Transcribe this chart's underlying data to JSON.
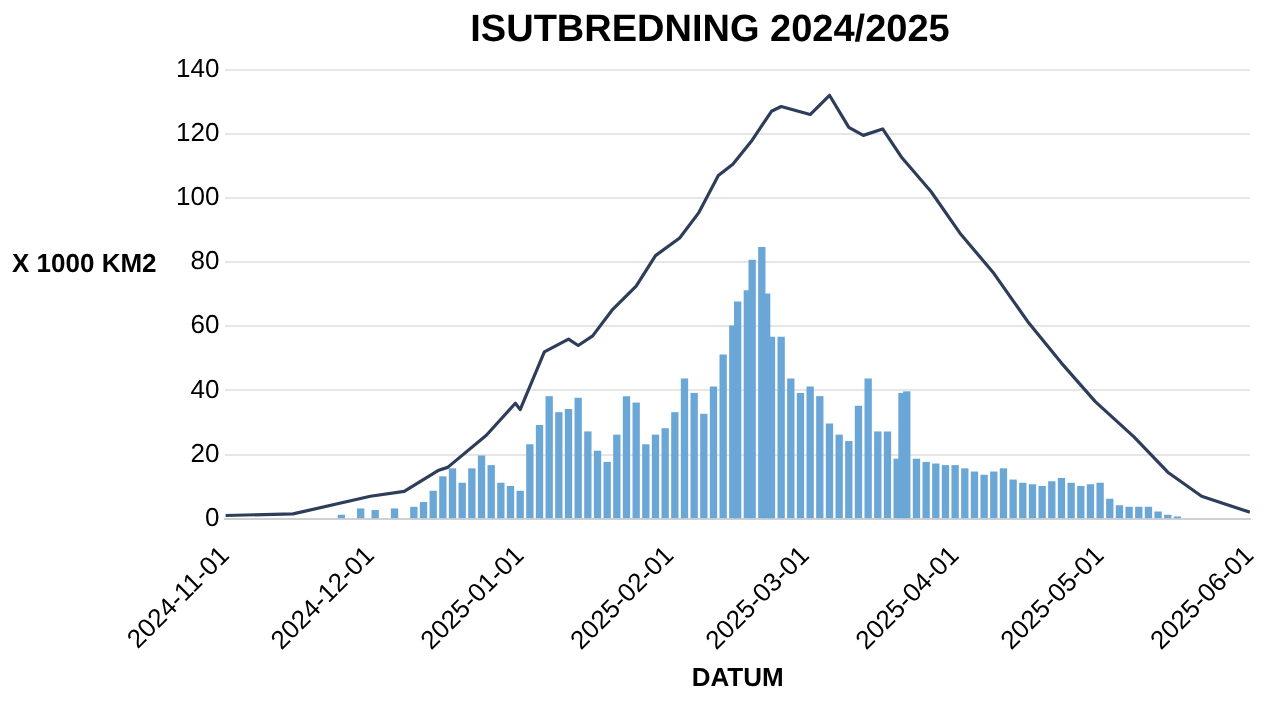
{
  "chart_data": {
    "type": "bar",
    "title": "ISUTBREDNING 2024/2025",
    "xlabel": "DATUM",
    "ylabel": "X 1000 KM2",
    "xlim": [
      "2024-11-01",
      "2025-06-01"
    ],
    "xticks": [
      "2024-11-01",
      "2024-12-01",
      "2025-01-01",
      "2025-02-01",
      "2025-03-01",
      "2025-04-01",
      "2025-05-01",
      "2025-06-01"
    ],
    "ylim": [
      0,
      140
    ],
    "yticks": [
      0,
      20,
      40,
      60,
      80,
      100,
      120,
      140
    ],
    "grid": "y",
    "legend": false,
    "series": [
      {
        "color": "#6aa6d6",
        "x": [
          "2024-11-25",
          "2024-11-29",
          "2024-12-02",
          "2024-12-06",
          "2024-12-10",
          "2024-12-12",
          "2024-12-14",
          "2024-12-16",
          "2024-12-18",
          "2024-12-20",
          "2024-12-22",
          "2024-12-24",
          "2024-12-26",
          "2024-12-28",
          "2024-12-30",
          "2025-01-01",
          "2025-01-03",
          "2025-01-05",
          "2025-01-07",
          "2025-01-09",
          "2025-01-11",
          "2025-01-13",
          "2025-01-15",
          "2025-01-17",
          "2025-01-19",
          "2025-01-21",
          "2025-01-23",
          "2025-01-25",
          "2025-01-27",
          "2025-01-29",
          "2025-01-31",
          "2025-02-02",
          "2025-02-04",
          "2025-02-06",
          "2025-02-08",
          "2025-02-10",
          "2025-02-12",
          "2025-02-14",
          "2025-02-15",
          "2025-02-17",
          "2025-02-18",
          "2025-02-20",
          "2025-02-21",
          "2025-02-22",
          "2025-02-24",
          "2025-02-26",
          "2025-02-28",
          "2025-03-02",
          "2025-03-04",
          "2025-03-06",
          "2025-03-08",
          "2025-03-10",
          "2025-03-12",
          "2025-03-14",
          "2025-03-16",
          "2025-03-18",
          "2025-03-20",
          "2025-03-21",
          "2025-03-22",
          "2025-03-24",
          "2025-03-26",
          "2025-03-28",
          "2025-03-30",
          "2025-04-01",
          "2025-04-03",
          "2025-04-05",
          "2025-04-07",
          "2025-04-09",
          "2025-04-11",
          "2025-04-13",
          "2025-04-15",
          "2025-04-17",
          "2025-04-19",
          "2025-04-21",
          "2025-04-23",
          "2025-04-25",
          "2025-04-27",
          "2025-04-29",
          "2025-05-01",
          "2025-05-03",
          "2025-05-05",
          "2025-05-07",
          "2025-05-09",
          "2025-05-11",
          "2025-05-13",
          "2025-05-15",
          "2025-05-17"
        ],
        "values": [
          1,
          3,
          2.5,
          3,
          3.5,
          5,
          8.5,
          13,
          15.5,
          11,
          15.5,
          19.5,
          16.5,
          11,
          10,
          8.5,
          23,
          29,
          38,
          33,
          34,
          37.5,
          27,
          21,
          17.5,
          26,
          38,
          36,
          23,
          26,
          28,
          33,
          43.5,
          39,
          32.5,
          41,
          51,
          60,
          67.5,
          71,
          80.5,
          84.5,
          70,
          56.5,
          56.5,
          43.5,
          39,
          41,
          38,
          29.5,
          26,
          24,
          35,
          43.5,
          27,
          27,
          18.5,
          39,
          39.5,
          18.5,
          17.5,
          17,
          16.5,
          16.5,
          15.5,
          14.5,
          13.5,
          14.5,
          15.5,
          12,
          11,
          10.5,
          10,
          11.5,
          12.5,
          11,
          10,
          10.5,
          11,
          6,
          4,
          3.5,
          3.5,
          3.5,
          2,
          1,
          0.5
        ]
      },
      {
        "type": "line",
        "color": "#2e3d5a",
        "x": [
          "2024-11-01",
          "2024-11-15",
          "2024-12-01",
          "2024-12-08",
          "2024-12-15",
          "2024-12-17",
          "2024-12-25",
          "2024-12-31",
          "2025-01-01",
          "2025-01-06",
          "2025-01-11",
          "2025-01-13",
          "2025-01-16",
          "2025-01-20",
          "2025-01-25",
          "2025-01-29",
          "2025-02-03",
          "2025-02-07",
          "2025-02-11",
          "2025-02-14",
          "2025-02-18",
          "2025-02-22",
          "2025-02-24",
          "2025-03-02",
          "2025-03-06",
          "2025-03-10",
          "2025-03-13",
          "2025-03-17",
          "2025-03-21",
          "2025-03-27",
          "2025-04-02",
          "2025-04-09",
          "2025-04-16",
          "2025-04-23",
          "2025-04-30",
          "2025-05-08",
          "2025-05-15",
          "2025-05-22",
          "2025-06-01"
        ],
        "values": [
          1,
          1.5,
          7,
          8.5,
          15,
          16,
          26,
          36,
          34,
          52,
          56,
          54,
          57,
          65,
          72.5,
          82,
          87.5,
          95.5,
          107,
          110.5,
          118,
          127,
          128.5,
          126,
          132,
          122,
          119.5,
          121.5,
          112.5,
          102,
          89,
          76.5,
          61.5,
          48.5,
          36.5,
          25.5,
          14.5,
          7,
          2
        ]
      }
    ]
  }
}
